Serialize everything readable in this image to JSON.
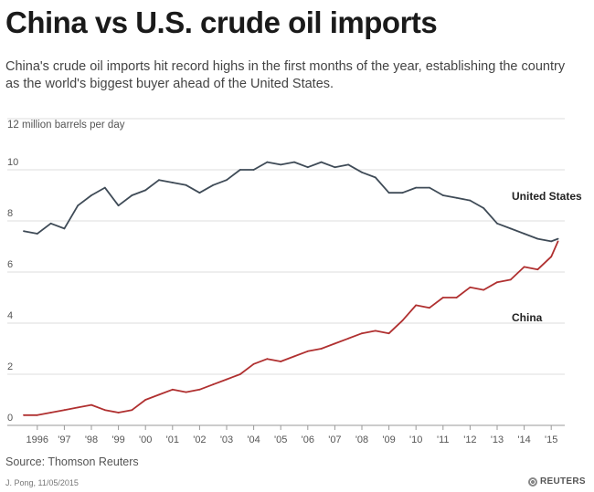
{
  "title": "China vs U.S. crude oil imports",
  "subtitle": "China's crude oil imports hit record highs in the first months of the year, establishing the country as the world's biggest buyer ahead of the United States.",
  "source": "Source: Thomson Reuters",
  "credit": "J. Pong, 11/05/2015",
  "logo_text": "REUTERS",
  "chart_data": {
    "type": "line",
    "ylabel": "12 million barrels per day",
    "ylim": [
      0,
      12
    ],
    "yticks": [
      0,
      2,
      4,
      6,
      8,
      10
    ],
    "xlim": [
      1995.5,
      2015.5
    ],
    "xtick_labels": [
      "1996",
      "'97",
      "'98",
      "'99",
      "'00",
      "'01",
      "'02",
      "'03",
      "'04",
      "'05",
      "'06",
      "'07",
      "'08",
      "'09",
      "'10",
      "'11",
      "'12",
      "'13",
      "'14",
      "'15"
    ],
    "grid": true,
    "series": [
      {
        "name": "United States",
        "color": "#3f4b57",
        "x": [
          1995.5,
          1996.0,
          1996.5,
          1997.0,
          1997.5,
          1998.0,
          1998.5,
          1999.0,
          1999.5,
          2000.0,
          2000.5,
          2001.0,
          2001.5,
          2002.0,
          2002.5,
          2003.0,
          2003.5,
          2004.0,
          2004.5,
          2005.0,
          2005.5,
          2006.0,
          2006.5,
          2007.0,
          2007.5,
          2008.0,
          2008.5,
          2009.0,
          2009.5,
          2010.0,
          2010.5,
          2011.0,
          2011.5,
          2012.0,
          2012.5,
          2013.0,
          2013.5,
          2014.0,
          2014.5,
          2015.0,
          2015.25
        ],
        "values": [
          7.6,
          7.5,
          7.9,
          7.7,
          8.6,
          9.0,
          9.3,
          8.6,
          9.0,
          9.2,
          9.6,
          9.5,
          9.4,
          9.1,
          9.4,
          9.6,
          10.0,
          10.0,
          10.3,
          10.2,
          10.3,
          10.1,
          10.3,
          10.1,
          10.2,
          9.9,
          9.7,
          9.1,
          9.1,
          9.3,
          9.3,
          9.0,
          8.9,
          8.8,
          8.5,
          7.9,
          7.7,
          7.5,
          7.3,
          7.2,
          7.3
        ]
      },
      {
        "name": "China",
        "color": "#b03030",
        "x": [
          1995.5,
          1996.0,
          1996.5,
          1997.0,
          1997.5,
          1998.0,
          1998.5,
          1999.0,
          1999.5,
          2000.0,
          2000.5,
          2001.0,
          2001.5,
          2002.0,
          2002.5,
          2003.0,
          2003.5,
          2004.0,
          2004.5,
          2005.0,
          2005.5,
          2006.0,
          2006.5,
          2007.0,
          2007.5,
          2008.0,
          2008.5,
          2009.0,
          2009.5,
          2010.0,
          2010.5,
          2011.0,
          2011.5,
          2012.0,
          2012.5,
          2013.0,
          2013.5,
          2014.0,
          2014.5,
          2015.0,
          2015.25
        ],
        "values": [
          0.4,
          0.4,
          0.5,
          0.6,
          0.7,
          0.8,
          0.6,
          0.5,
          0.6,
          1.0,
          1.2,
          1.4,
          1.3,
          1.4,
          1.6,
          1.8,
          2.0,
          2.4,
          2.6,
          2.5,
          2.7,
          2.9,
          3.0,
          3.2,
          3.4,
          3.6,
          3.7,
          3.6,
          4.1,
          4.7,
          4.6,
          5.0,
          5.0,
          5.4,
          5.3,
          5.6,
          5.7,
          6.2,
          6.1,
          6.6,
          7.2
        ]
      }
    ]
  }
}
